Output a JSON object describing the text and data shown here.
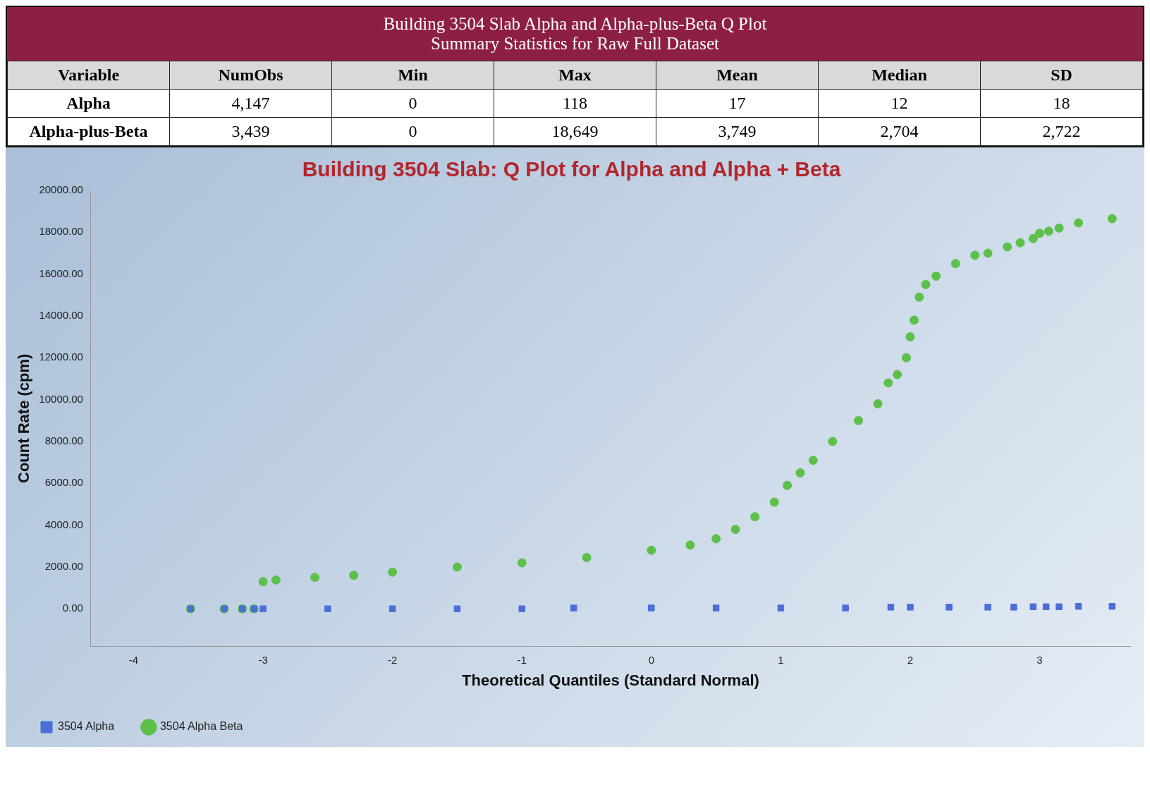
{
  "chart_data": [
    {
      "type": "heatmap",
      "data_labels": true,
      "title": "Building 3504 Slab Alpha and Alpha-plus-Beta Q Plot",
      "subtitle": "Summary Statistics for Raw Full Dataset",
      "ylabel": "Variable",
      "categories": [
        "NumObs",
        "Min",
        "Max",
        "Mean",
        "Median",
        "SD"
      ],
      "y_categories": [
        "Alpha",
        "Alpha-plus-Beta"
      ],
      "cells": [
        [
          4147,
          0,
          118,
          17,
          12,
          18
        ],
        [
          3439,
          0,
          18649,
          3749,
          2704,
          2722
        ]
      ],
      "cell_labels": [
        [
          "4,147",
          "0",
          "118",
          "17",
          "12",
          "18"
        ],
        [
          "3,439",
          "0",
          "18,649",
          "3,749",
          "2,704",
          "2,722"
        ]
      ]
    },
    {
      "type": "scatter",
      "title": "Building 3504 Slab: Q Plot for Alpha and Alpha + Beta",
      "xlabel": "Theoretical Quantiles (Standard Normal)",
      "ylabel": "Count Rate (cpm)",
      "xlim": [
        -4.33,
        3.7
      ],
      "xticks": [
        -4,
        -3,
        -2,
        -1,
        0,
        1,
        2,
        3
      ],
      "ylim": [
        -1800,
        20000
      ],
      "yticks": [
        {
          "value": 0,
          "label": "0.00"
        },
        {
          "value": 2000,
          "label": "2000.00"
        },
        {
          "value": 4000,
          "label": "4000.00"
        },
        {
          "value": 6000,
          "label": "6000.00"
        },
        {
          "value": 8000,
          "label": "8000.00"
        },
        {
          "value": 10000,
          "label": "10000.00"
        },
        {
          "value": 12000,
          "label": "12000.00"
        },
        {
          "value": 14000,
          "label": "14000.00"
        },
        {
          "value": 16000,
          "label": "16000.00"
        },
        {
          "value": 18000,
          "label": "18000.00"
        },
        {
          "value": 20000,
          "label": "20000.00"
        }
      ],
      "grid": false,
      "legend": "bottom",
      "series": [
        {
          "name": "3504 Alpha",
          "color": "#4a6fd8",
          "marker": "square",
          "x": [
            -3.56,
            -3.3,
            -3.16,
            -3.07,
            -3.0,
            -2.5,
            -2.0,
            -1.5,
            -1.0,
            -0.6,
            0,
            0.5,
            1.0,
            1.5,
            1.85,
            2.0,
            2.3,
            2.6,
            2.8,
            2.95,
            3.05,
            3.15,
            3.3,
            3.56
          ],
          "values": [
            0,
            0,
            0,
            0,
            0,
            0,
            0,
            0,
            0,
            40,
            40,
            40,
            40,
            40,
            80,
            80,
            80,
            80,
            80,
            100,
            100,
            100,
            118,
            118
          ]
        },
        {
          "name": "3504 Alpha Beta",
          "color": "#5cc04a",
          "marker": "circle",
          "x": [
            -3.56,
            -3.3,
            -3.16,
            -3.07,
            -3.0,
            -2.9,
            -2.6,
            -2.3,
            -2.0,
            -1.5,
            -1.0,
            -0.5,
            0,
            0.3,
            0.5,
            0.65,
            0.8,
            0.95,
            1.05,
            1.15,
            1.25,
            1.4,
            1.6,
            1.75,
            1.83,
            1.9,
            1.97,
            2.0,
            2.03,
            2.07,
            2.12,
            2.2,
            2.35,
            2.5,
            2.6,
            2.75,
            2.85,
            2.95,
            3.0,
            3.07,
            3.15,
            3.3,
            3.56
          ],
          "values": [
            0,
            0,
            0,
            0,
            1300,
            1380,
            1500,
            1600,
            1750,
            2000,
            2200,
            2450,
            2800,
            3050,
            3350,
            3800,
            4400,
            5100,
            5900,
            6500,
            7100,
            8000,
            9000,
            9800,
            10800,
            11200,
            12000,
            13000,
            13800,
            14900,
            15500,
            15900,
            16500,
            16900,
            17000,
            17300,
            17500,
            17700,
            17950,
            18050,
            18200,
            18450,
            18649
          ]
        }
      ]
    }
  ]
}
